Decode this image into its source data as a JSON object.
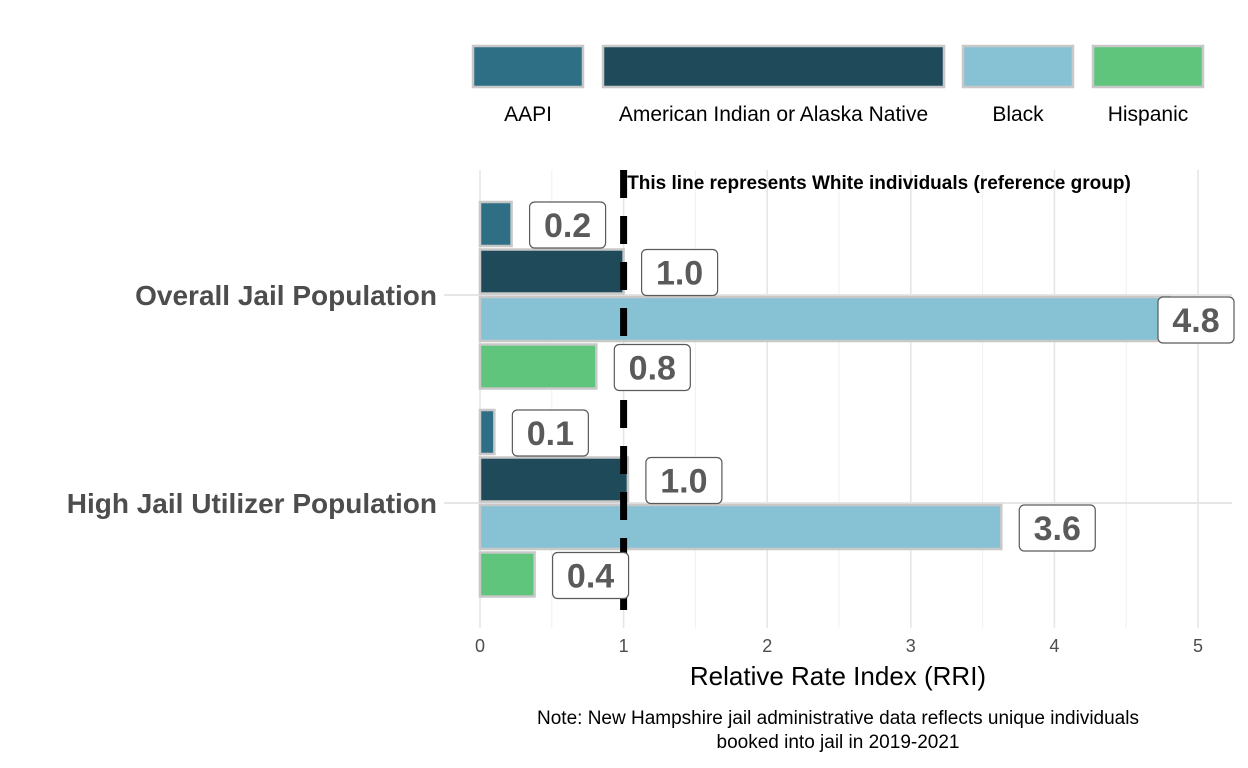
{
  "chart_data": {
    "type": "bar",
    "orientation": "horizontal",
    "categories": [
      "Overall Jail Population",
      "High Jail Utilizer Population"
    ],
    "series": [
      {
        "name": "AAPI",
        "color": "#2e6f85",
        "values": [
          0.22,
          0.1
        ],
        "labels": [
          "0.2",
          "0.1"
        ]
      },
      {
        "name": "American Indian or Alaska Native",
        "color": "#1f4a5a",
        "values": [
          1.0,
          1.03
        ],
        "labels": [
          "1.0",
          "1.0"
        ]
      },
      {
        "name": "Black",
        "color": "#87c1d4",
        "values": [
          4.8,
          3.63
        ],
        "labels": [
          "4.8",
          "3.6"
        ]
      },
      {
        "name": "Hispanic",
        "color": "#5fc47c",
        "values": [
          0.81,
          0.38
        ],
        "labels": [
          "0.8",
          "0.4"
        ]
      }
    ],
    "xlabel": "Relative Rate Index (RRI)",
    "xlim": [
      0,
      5.2
    ],
    "xticks": [
      0,
      1,
      2,
      3,
      4,
      5
    ],
    "tick_labels": [
      "0",
      "1",
      "2",
      "3",
      "4",
      "5"
    ],
    "reference_line": {
      "value": 1,
      "label": "This line represents White individuals (reference group)"
    },
    "note": [
      "Note: New Hampshire jail administrative data reflects unique individuals",
      "booked into jail in 2019-2021"
    ],
    "legend_position": "top",
    "grid": true
  }
}
